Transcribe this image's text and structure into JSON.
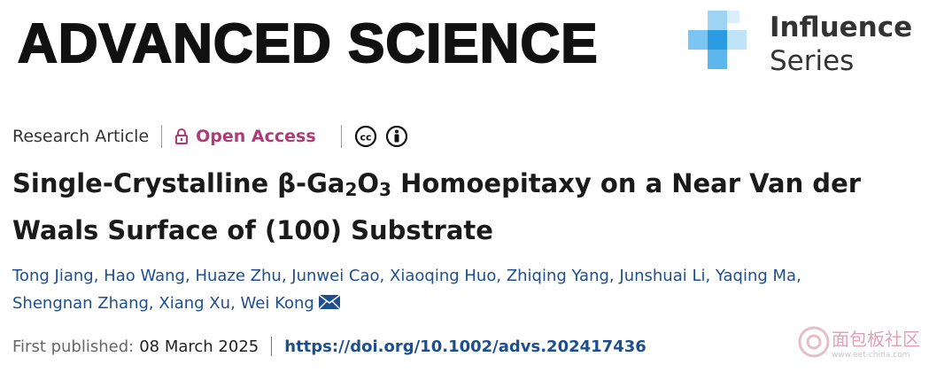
{
  "header": {
    "journal": "ADVANCED SCIENCE",
    "series": [
      "Influence",
      "Series"
    ]
  },
  "article": {
    "type": "Research Article",
    "access": "Open Access",
    "title": [
      "Single-Crystalline β-Ga",
      "2",
      "O",
      "3",
      " Homoepitaxy on a Near Van der Waals Surface of (100) Substrate"
    ],
    "authors": [
      "Tong Jiang",
      "Hao Wang",
      "Huaze Zhu",
      "Junwei Cao",
      "Xiaoqing Huo",
      "Zhiqing Yang",
      "Junshuai Li",
      "Yaqing Ma",
      "Shengnan Zhang",
      "Xiang Xu",
      "Wei Kong"
    ],
    "author_separator": ",",
    "published_label": "First published:",
    "published_date": "08 March 2025",
    "doi": "https://doi.org/10.1002/advs.202417436"
  },
  "watermark": {
    "name": "面包板社区",
    "site": "www.eet-china.com"
  }
}
